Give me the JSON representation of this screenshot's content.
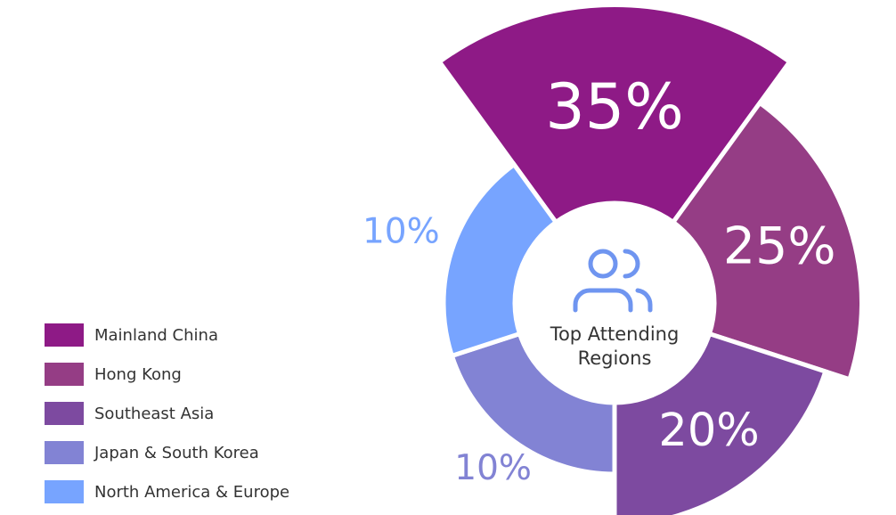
{
  "chart_data": {
    "type": "polar-donut",
    "center_label": [
      "Top Attending",
      "Regions"
    ],
    "categories": [
      "Mainland China",
      "Hong Kong",
      "Southeast Asia",
      "Japan & South Korea",
      "North America & Europe"
    ],
    "values": [
      35,
      25,
      20,
      10,
      10
    ],
    "value_labels": [
      "35%",
      "25%",
      "20%",
      "10%",
      "10%"
    ],
    "colors": [
      "#8e1a86",
      "#953d85",
      "#7d4aa0",
      "#8283d4",
      "#77a4ff"
    ],
    "legend": "bottom-left"
  }
}
